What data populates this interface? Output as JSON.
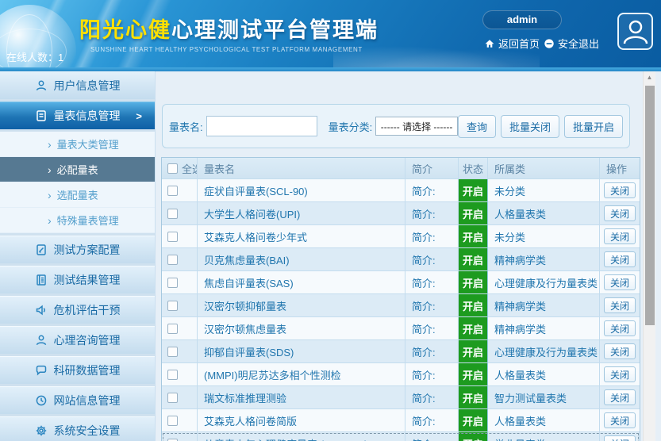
{
  "colors": {
    "accent_blue": "#1a7ab8",
    "status_green": "#1d9b1f",
    "brand_yellow": "#ffe000"
  },
  "header": {
    "brand_highlight": "阳光心健",
    "brand_rest": "心理测试平台管理端",
    "subtitle": "SUNSHINE HEART HEALTHY PSYCHOLOGICAL TEST PLATFORM MANAGEMENT",
    "online_label": "在线人数：",
    "online_count": "1",
    "username": "admin",
    "home_link": "返回首页",
    "logout_link": "安全退出"
  },
  "sidebar": {
    "items": [
      {
        "label": "用户信息管理",
        "icon": "user-icon",
        "type": "item",
        "key": "user-info"
      },
      {
        "label": "量表信息管理",
        "icon": "form-icon",
        "type": "active",
        "key": "scale-info"
      },
      {
        "label": "量表大类管理",
        "type": "sub",
        "key": "scale-category"
      },
      {
        "label": "必配量表",
        "type": "sub-active",
        "key": "required-scales"
      },
      {
        "label": "选配量表",
        "type": "sub",
        "key": "optional-scales"
      },
      {
        "label": "特殊量表管理",
        "type": "sub",
        "key": "special-scales"
      },
      {
        "label": "测试方案配置",
        "icon": "doc-edit-icon",
        "type": "item",
        "key": "test-plan"
      },
      {
        "label": "测试结果管理",
        "icon": "report-icon",
        "type": "item",
        "key": "test-results"
      },
      {
        "label": "危机评估干预",
        "icon": "alert-icon",
        "type": "item",
        "key": "crisis"
      },
      {
        "label": "心理咨询管理",
        "icon": "user-icon",
        "type": "item",
        "key": "counseling"
      },
      {
        "label": "科研数据管理",
        "icon": "chat-icon",
        "type": "item",
        "key": "research-data"
      },
      {
        "label": "网站信息管理",
        "icon": "clock-icon",
        "type": "item",
        "key": "site-info"
      },
      {
        "label": "系统安全设置",
        "icon": "gear-icon",
        "type": "item",
        "key": "security"
      }
    ]
  },
  "filters": {
    "name_label": "量表名:",
    "name_value": "",
    "name_placeholder": "",
    "category_label": "量表分类:",
    "category_value": "------ 请选择 ------",
    "search_button": "查询",
    "batch_close_button": "批量关闭",
    "batch_open_button": "批量开启"
  },
  "table": {
    "headers": {
      "select": "全选",
      "name": "量表名",
      "intro": "简介",
      "status": "状态",
      "category": "所属类",
      "action": "操作"
    },
    "intro_label": "简介:",
    "status_on": "开启",
    "action_close": "关闭",
    "rows": [
      {
        "name": "症状自评量表(SCL-90)",
        "category": "未分类"
      },
      {
        "name": "大学生人格问卷(UPI)",
        "category": "人格量表类"
      },
      {
        "name": "艾森克人格问卷少年式",
        "category": "未分类"
      },
      {
        "name": "贝克焦虑量表(BAI)",
        "category": "精神病学类"
      },
      {
        "name": "焦虑自评量表(SAS)",
        "category": "心理健康及行为量表类"
      },
      {
        "name": "汉密尔顿抑郁量表",
        "category": "精神病学类"
      },
      {
        "name": "汉密尔顿焦虑量表",
        "category": "精神病学类"
      },
      {
        "name": "抑郁自评量表(SDS)",
        "category": "心理健康及行为量表类"
      },
      {
        "name": "(MMPI)明尼苏达多相个性测检",
        "category": "人格量表类"
      },
      {
        "name": "瑞文标准推理测验",
        "category": "智力测试量表类"
      },
      {
        "name": "艾森克人格问卷简版",
        "category": "人格量表类"
      },
      {
        "name": "儿童青少年心理健康量表 (MHS-CA)",
        "category": "学业量表类",
        "focused": true
      }
    ]
  }
}
